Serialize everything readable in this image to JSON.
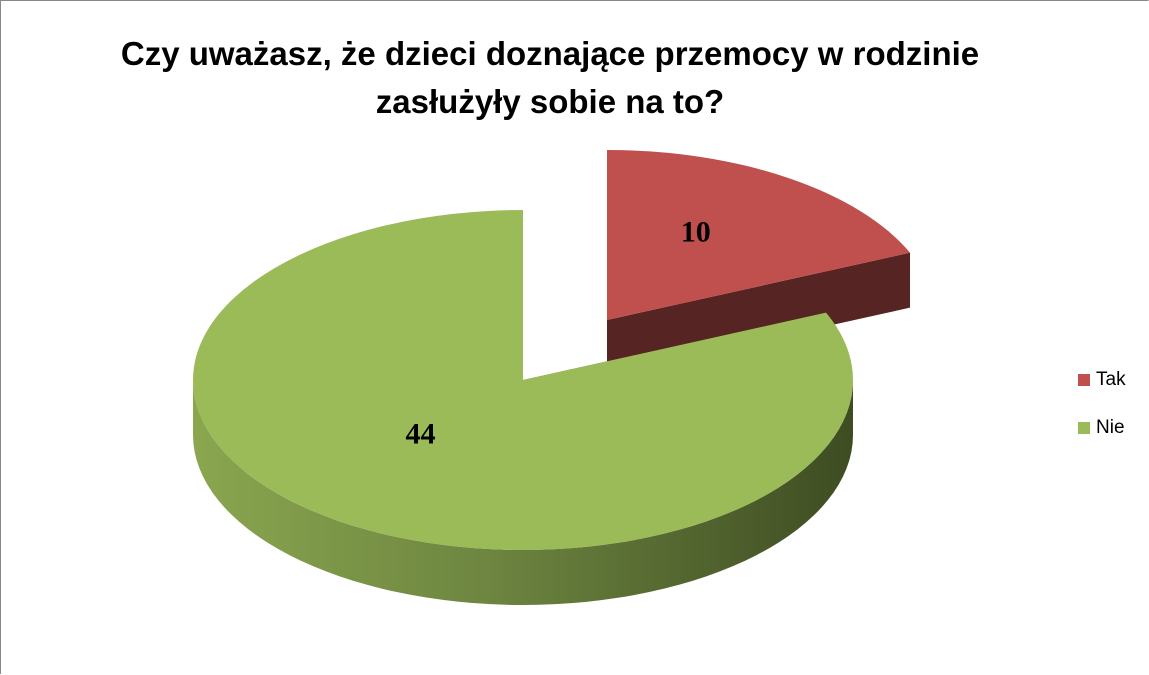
{
  "chart_data": {
    "type": "pie",
    "title": "Czy uważasz, że dzieci doznające przemocy w rodzinie zasłużyły sobie na to?",
    "categories": [
      "Tak",
      "Nie"
    ],
    "values": [
      10,
      44
    ],
    "colors": [
      "#c0504d",
      "#9bbb59"
    ],
    "legend": "right"
  }
}
